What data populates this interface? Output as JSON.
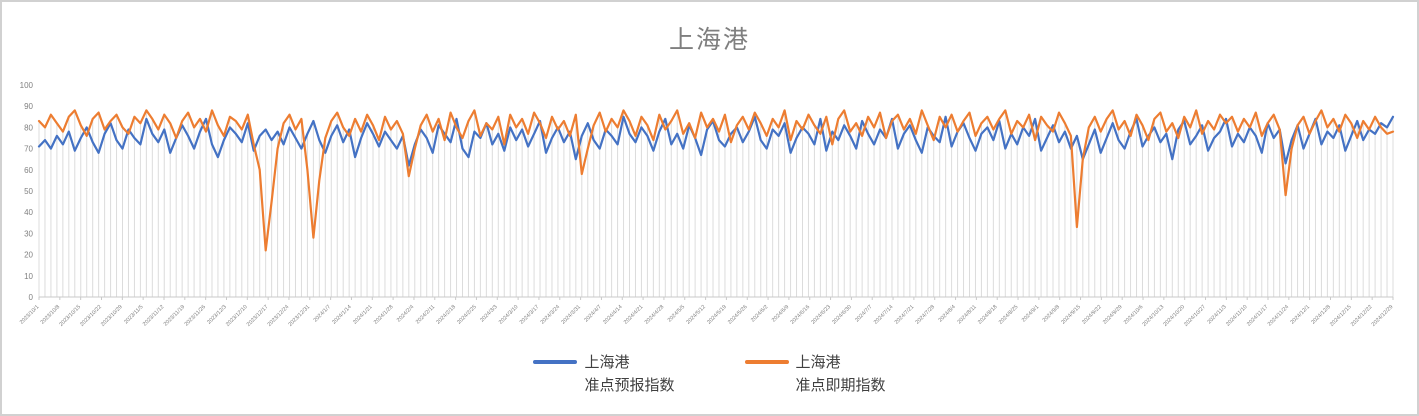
{
  "window": {
    "background": "#ffffff",
    "border_color": "#d1d1d1"
  },
  "chart": {
    "title": "上海港",
    "title_color": "#7f7f7f",
    "legend": [
      {
        "line1": "上海港",
        "line2": "准点预报指数",
        "color": "#4472C4"
      },
      {
        "line1": "上海港",
        "line2": "准点即期指数",
        "color": "#ED7D31"
      }
    ]
  },
  "chart_data": {
    "type": "line",
    "title": "上海港",
    "xlabel": "",
    "ylabel": "",
    "ylim": [
      0,
      100
    ],
    "y_ticks": [
      0,
      10,
      20,
      30,
      40,
      50,
      60,
      70,
      80,
      90,
      100
    ],
    "grid": "vertical-drop-lines-only",
    "legend_position": "bottom-center",
    "axis_color": "#c9c9c9",
    "dropline_color": "#dcdcdc",
    "tick_label_color": "#808080",
    "x_labels": [
      "2023/10/1",
      "2023/10/8",
      "2023/10/15",
      "2023/10/22",
      "2023/10/29",
      "2023/11/5",
      "2023/11/12",
      "2023/11/19",
      "2023/11/26",
      "2023/12/3",
      "2023/12/10",
      "2023/12/17",
      "2023/12/24",
      "2023/12/31",
      "2024/1/7",
      "2024/1/14",
      "2024/1/21",
      "2024/1/28",
      "2024/2/4",
      "2024/2/11",
      "2024/2/18",
      "2024/2/25",
      "2024/3/3",
      "2024/3/10",
      "2024/3/17",
      "2024/3/24",
      "2024/3/31",
      "2024/4/7",
      "2024/4/14",
      "2024/4/21",
      "2024/4/28",
      "2024/5/5",
      "2024/5/12",
      "2024/5/19",
      "2024/5/26",
      "2024/6/2",
      "2024/6/9",
      "2024/6/16",
      "2024/6/23",
      "2024/6/30",
      "2024/7/7",
      "2024/7/14",
      "2024/7/21",
      "2024/7/28",
      "2024/8/4",
      "2024/8/11",
      "2024/8/18",
      "2024/8/25",
      "2024/9/1",
      "2024/9/8",
      "2024/9/15",
      "2024/9/22",
      "2024/9/29",
      "2024/10/6",
      "2024/10/13",
      "2024/10/20",
      "2024/10/27",
      "2024/11/3",
      "2024/11/10",
      "2024/11/17",
      "2024/11/24",
      "2024/12/1",
      "2024/12/8",
      "2024/12/15",
      "2024/12/22",
      "2024/12/29"
    ],
    "x_label_interval_days": 7,
    "points_sampling_days": 2,
    "series": [
      {
        "name": "上海港 准点预报指数",
        "color": "#4472C4",
        "values": [
          71,
          74,
          70,
          76,
          72,
          78,
          69,
          75,
          80,
          73,
          68,
          77,
          82,
          74,
          70,
          79,
          75,
          72,
          84,
          77,
          73,
          79,
          68,
          75,
          81,
          76,
          70,
          78,
          84,
          72,
          66,
          74,
          80,
          77,
          73,
          82,
          69,
          76,
          79,
          74,
          78,
          72,
          80,
          75,
          70,
          77,
          83,
          74,
          68,
          76,
          81,
          73,
          79,
          66,
          75,
          82,
          77,
          71,
          78,
          74,
          70,
          76,
          62,
          72,
          79,
          75,
          68,
          81,
          77,
          73,
          84,
          70,
          66,
          78,
          75,
          82,
          72,
          77,
          69,
          80,
          74,
          79,
          71,
          77,
          83,
          68,
          75,
          80,
          73,
          78,
          65,
          76,
          82,
          74,
          70,
          79,
          76,
          72,
          85,
          77,
          73,
          80,
          76,
          69,
          78,
          84,
          72,
          77,
          70,
          81,
          75,
          67,
          79,
          83,
          74,
          71,
          77,
          80,
          73,
          78,
          85,
          74,
          70,
          79,
          76,
          82,
          68,
          75,
          80,
          77,
          72,
          84,
          69,
          78,
          74,
          81,
          76,
          70,
          83,
          77,
          72,
          79,
          75,
          84,
          70,
          77,
          81,
          74,
          68,
          80,
          76,
          73,
          85,
          71,
          78,
          82,
          75,
          69,
          77,
          80,
          74,
          83,
          70,
          77,
          72,
          80,
          76,
          84,
          69,
          75,
          81,
          73,
          78,
          70,
          76,
          65,
          72,
          79,
          68,
          75,
          82,
          74,
          70,
          78,
          84,
          71,
          76,
          80,
          73,
          77,
          65,
          79,
          83,
          72,
          76,
          81,
          69,
          75,
          78,
          84,
          71,
          77,
          73,
          80,
          76,
          68,
          82,
          75,
          79,
          63,
          74,
          81,
          70,
          77,
          84,
          72,
          78,
          75,
          81,
          69,
          76,
          83,
          74,
          79,
          77,
          82,
          80,
          85
        ]
      },
      {
        "name": "上海港 准点即期指数",
        "color": "#ED7D31",
        "values": [
          83,
          80,
          86,
          82,
          78,
          85,
          88,
          81,
          76,
          84,
          87,
          79,
          83,
          86,
          80,
          77,
          85,
          82,
          88,
          84,
          79,
          86,
          82,
          75,
          83,
          87,
          80,
          84,
          78,
          88,
          81,
          76,
          85,
          83,
          79,
          86,
          72,
          60,
          22,
          45,
          70,
          82,
          86,
          79,
          84,
          60,
          28,
          55,
          75,
          83,
          87,
          80,
          76,
          84,
          78,
          86,
          81,
          74,
          85,
          79,
          83,
          77,
          57,
          70,
          81,
          86,
          78,
          84,
          74,
          87,
          80,
          75,
          83,
          88,
          76,
          82,
          79,
          85,
          72,
          86,
          80,
          84,
          77,
          87,
          82,
          75,
          85,
          79,
          83,
          76,
          86,
          58,
          70,
          81,
          87,
          78,
          84,
          80,
          88,
          83,
          76,
          85,
          81,
          74,
          86,
          79,
          83,
          88,
          77,
          82,
          75,
          87,
          80,
          84,
          78,
          86,
          73,
          81,
          85,
          79,
          87,
          82,
          76,
          84,
          80,
          88,
          74,
          83,
          79,
          86,
          81,
          77,
          85,
          72,
          84,
          88,
          78,
          82,
          76,
          85,
          80,
          87,
          75,
          83,
          86,
          79,
          84,
          77,
          88,
          81,
          74,
          85,
          80,
          86,
          78,
          83,
          87,
          76,
          82,
          85,
          79,
          84,
          88,
          77,
          83,
          80,
          86,
          74,
          85,
          81,
          78,
          87,
          82,
          76,
          33,
          65,
          80,
          85,
          78,
          84,
          88,
          79,
          83,
          76,
          86,
          81,
          74,
          84,
          87,
          78,
          82,
          75,
          85,
          80,
          88,
          77,
          83,
          79,
          86,
          82,
          85,
          78,
          84,
          80,
          87,
          76,
          82,
          86,
          79,
          48,
          70,
          81,
          85,
          77,
          83,
          88,
          80,
          84,
          78,
          86,
          82,
          75,
          83,
          79,
          85,
          80,
          77,
          78
        ]
      }
    ]
  }
}
